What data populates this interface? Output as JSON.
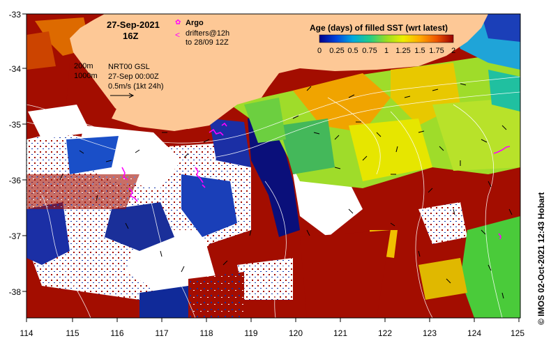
{
  "map": {
    "date_title": "27-Sep-2021",
    "time_title": "16Z",
    "argo_label": "Argo",
    "drifter_label_1": "drifters@12h",
    "drifter_label_2": "to 28/09 12Z",
    "depth_label_1": "200m",
    "depth_label_2": "1000m",
    "product_line_1": "NRT00 GSL",
    "product_line_2": "27-Sep 00:00Z",
    "scale_label": "0.5m/s (1kt 24h)",
    "credit": "© IMOS 02-Oct-2021 12:43 Hobart"
  },
  "colorbar": {
    "title": "Age (days) of filled SST (wrt latest)",
    "ticks": [
      "0",
      "0.25",
      "0.5",
      "0.75",
      "1",
      "1.25",
      "1.5",
      "1.75",
      "2"
    ],
    "range": [
      0,
      2
    ],
    "colors": [
      "#00008b",
      "#0044dd",
      "#00aadd",
      "#22cc88",
      "#99dd22",
      "#eeee00",
      "#ffaa00",
      "#ee5500",
      "#990000"
    ]
  },
  "axes": {
    "x_ticks": [
      "114",
      "115",
      "116",
      "117",
      "118",
      "119",
      "120",
      "121",
      "122",
      "123",
      "124",
      "125"
    ],
    "y_ticks": [
      "-33",
      "-34",
      "-35",
      "-36",
      "-37",
      "-38"
    ],
    "lon_range": [
      114,
      125
    ],
    "lat_range": [
      -38.5,
      -33
    ]
  },
  "colors": {
    "land": "#fdc896",
    "no_data": "#ffffff",
    "drifter": "#ff00ff"
  }
}
